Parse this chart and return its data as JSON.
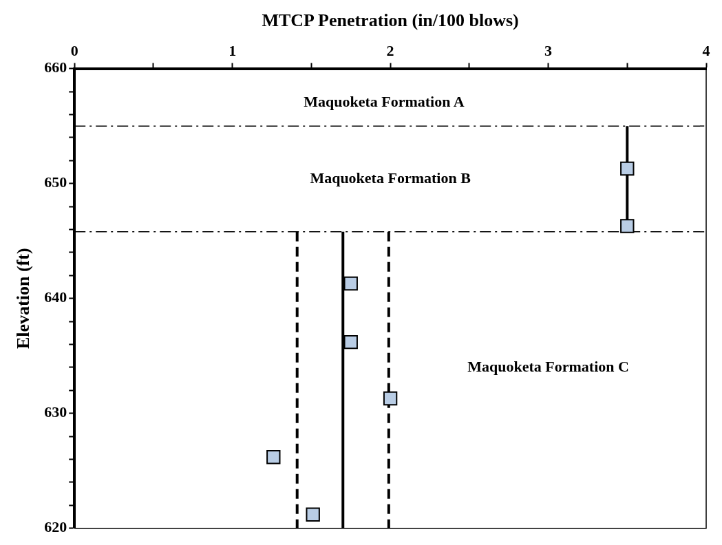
{
  "chart_data": {
    "type": "scatter",
    "xlabel": "MTCP Penetration (in/100 blows)",
    "ylabel": "Elevation (ft)",
    "xlim": [
      0,
      4
    ],
    "xticks": [
      0,
      {
        "value": 0.5,
        "label": null
      },
      1,
      {
        "value": 1.5,
        "label": null
      },
      2,
      {
        "value": 2.5,
        "label": null
      },
      3,
      {
        "value": 3.5,
        "label": null
      },
      4
    ],
    "ylim": [
      620,
      660
    ],
    "yticks": [
      620,
      {
        "value": 622,
        "label": null
      },
      {
        "value": 624,
        "label": null
      },
      {
        "value": 626,
        "label": null
      },
      {
        "value": 628,
        "label": null
      },
      630,
      {
        "value": 632,
        "label": null
      },
      {
        "value": 634,
        "label": null
      },
      {
        "value": 636,
        "label": null
      },
      {
        "value": 638,
        "label": null
      },
      640,
      {
        "value": 642,
        "label": null
      },
      {
        "value": 644,
        "label": null
      },
      {
        "value": 646,
        "label": null
      },
      {
        "value": 648,
        "label": null
      },
      650,
      {
        "value": 652,
        "label": null
      },
      {
        "value": 654,
        "label": null
      },
      {
        "value": 656,
        "label": null
      },
      {
        "value": 658,
        "label": null
      },
      660
    ],
    "grid": false,
    "legend": false,
    "marker": "square",
    "series": [
      {
        "type": "scatter",
        "color": "#b9cde5",
        "x": [
          3.5,
          3.5,
          1.75,
          1.75,
          2.0,
          1.26,
          1.51
        ],
        "values": [
          651.3,
          646.3,
          641.3,
          636.2,
          631.3,
          626.2,
          621.2
        ]
      },
      {
        "type": "line",
        "color": "#000000",
        "marker": "none",
        "line_style": "solid",
        "x": [
          3.5,
          3.5
        ],
        "values": [
          655,
          645.8
        ]
      },
      {
        "type": "line",
        "color": "#000000",
        "marker": "none",
        "line_style": "solid",
        "x": [
          1.7,
          1.7
        ],
        "values": [
          645.8,
          620
        ]
      },
      {
        "type": "line",
        "color": "#000000",
        "marker": "none",
        "line_style": "dashed",
        "x": [
          1.41,
          1.41
        ],
        "values": [
          645.8,
          620
        ]
      },
      {
        "type": "line",
        "color": "#000000",
        "marker": "none",
        "line_style": "dashed",
        "x": [
          1.99,
          1.99
        ],
        "values": [
          645.8,
          620
        ]
      }
    ],
    "ref_lines": [
      {
        "axis": "y",
        "value": 655,
        "color": "#000000",
        "line_style": "dashed"
      },
      {
        "axis": "y",
        "value": 645.8,
        "color": "#000000",
        "line_style": "dashed"
      }
    ],
    "annotations": [
      "Maquoketa Formation A",
      "Maquoketa Formation B",
      "Maquoketa Formation C"
    ]
  }
}
